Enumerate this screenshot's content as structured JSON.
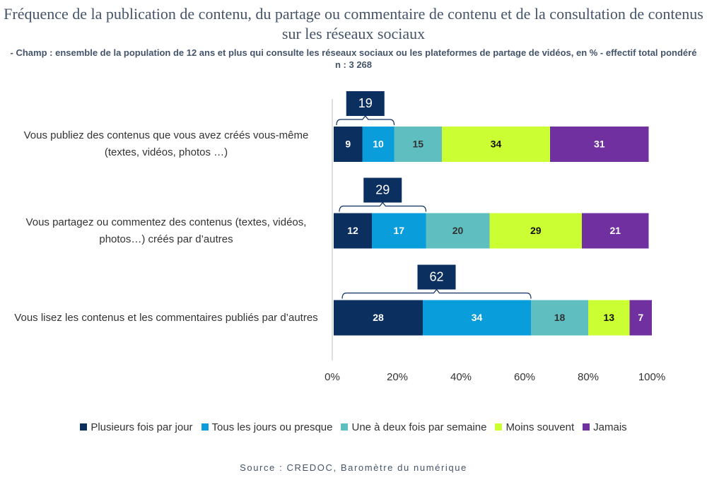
{
  "chart_data": {
    "type": "stacked_barh",
    "title": "Fréquence de la publication de contenu, du partage ou commentaire de contenu et de la consultation de contenus sur les réseaux sociaux",
    "subtitle": "- Champ : ensemble de la population de 12 ans et plus qui consulte les réseaux sociaux ou les plateformes de partage de vidéos, en % - effectif total pondéré n : 3 268",
    "source": "Source : CREDOC, Baromètre du numérique",
    "categories": [
      "Vous publiez des contenus que vous avez créés vous-même (textes, vidéos, photos …)",
      "Vous partagez ou commentez des contenus (textes, vidéos, photos…) créés par d’autres",
      "Vous lisez les contenus et les commentaires publiés par d’autres"
    ],
    "series": [
      {
        "name": "Plusieurs fois par jour",
        "color": "#0b2f5e",
        "label_color": "#ffffff",
        "values": [
          9,
          12,
          28
        ]
      },
      {
        "name": "Tous les jours ou presque",
        "color": "#0a9ddb",
        "label_color": "#ffffff",
        "values": [
          10,
          17,
          34
        ]
      },
      {
        "name": "Une à deux fois par semaine",
        "color": "#5fbfc0",
        "label_color": "#333333",
        "values": [
          15,
          20,
          18
        ]
      },
      {
        "name": "Moins souvent",
        "color": "#ccff33",
        "label_color": "#111111",
        "values": [
          34,
          29,
          13
        ]
      },
      {
        "name": "Jamais",
        "color": "#7030a0",
        "label_color": "#ffffff",
        "values": [
          31,
          21,
          7
        ]
      }
    ],
    "bracket_totals": [
      19,
      29,
      62
    ],
    "xlim": [
      0,
      100
    ],
    "xticks": [
      {
        "value": 0,
        "label": "0%"
      },
      {
        "value": 20,
        "label": "20%"
      },
      {
        "value": 40,
        "label": "40%"
      },
      {
        "value": 60,
        "label": "60%"
      },
      {
        "value": 80,
        "label": "80%"
      },
      {
        "value": 100,
        "label": "100%"
      }
    ],
    "legend": "bottom"
  }
}
